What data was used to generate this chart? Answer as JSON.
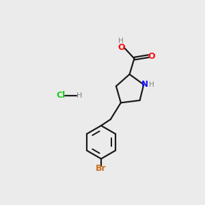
{
  "bg_color": "#ebebeb",
  "bond_color": "#1a1a1a",
  "N_color": "#1414ff",
  "O_color": "#ff0d0d",
  "Br_color": "#c87020",
  "Cl_color": "#1dc81d",
  "H_color": "#808080",
  "figsize": [
    3.0,
    3.0
  ],
  "dpi": 100,
  "xlim": [
    0,
    10
  ],
  "ylim": [
    0,
    10
  ]
}
